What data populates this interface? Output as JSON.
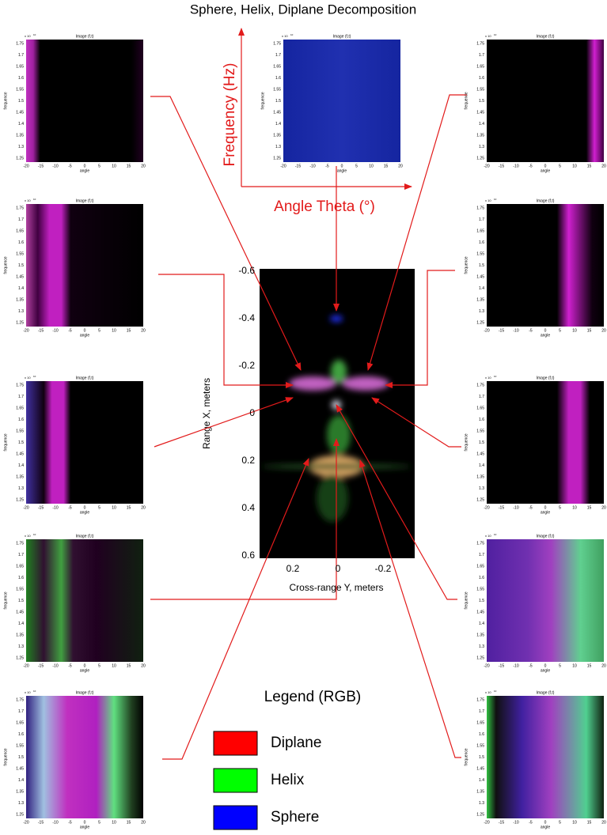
{
  "title": "Sphere, Helix, Diplane Decomposition",
  "axes_guide": {
    "y_label": "Frequency (Hz)",
    "x_label": "Angle Theta (°)"
  },
  "center_image": {
    "y_label": "Range X, meters",
    "x_label": "Cross-range Y, meters",
    "yticks": [
      "-0.6",
      "-0.4",
      "-0.2",
      "0",
      "0.2",
      "0.4",
      "0.6"
    ],
    "xticks": [
      "0.2",
      "0",
      "-0.2"
    ]
  },
  "panel": {
    "title": "Image (f,t)",
    "exponent_base": "x 10",
    "exponent_power": "10",
    "y_label": "frequence",
    "x_label": "angle",
    "yticks": [
      "1.75",
      "1.7",
      "1.65",
      "1.6",
      "1.55",
      "1.5",
      "1.45",
      "1.4",
      "1.35",
      "1.3",
      "1.25"
    ],
    "xticks": [
      "-20",
      "-15",
      "-10",
      "-5",
      "0",
      "5",
      "10",
      "15",
      "20"
    ]
  },
  "legend": {
    "title": "Legend (RGB)",
    "items": [
      {
        "label": "Diplane",
        "color": "#ff0000"
      },
      {
        "label": "Helix",
        "color": "#00ff00"
      },
      {
        "label": "Sphere",
        "color": "#0000ff"
      }
    ]
  }
}
